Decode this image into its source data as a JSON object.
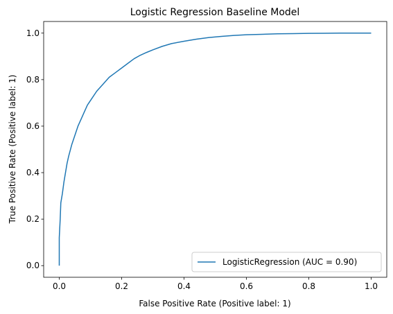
{
  "chart_data": {
    "type": "line",
    "title": "Logistic Regression Baseline Model",
    "xlabel": "False Positive Rate (Positive label: 1)",
    "ylabel": "True Positive Rate (Positive label: 1)",
    "xlim": [
      -0.05,
      1.05
    ],
    "ylim": [
      -0.05,
      1.05
    ],
    "xticks": [
      0.0,
      0.2,
      0.4,
      0.6,
      0.8,
      1.0
    ],
    "yticks": [
      0.0,
      0.2,
      0.4,
      0.6,
      0.8,
      1.0
    ],
    "xtick_labels": [
      "0.0",
      "0.2",
      "0.4",
      "0.6",
      "0.8",
      "1.0"
    ],
    "ytick_labels": [
      "0.0",
      "0.2",
      "0.4",
      "0.6",
      "0.8",
      "1.0"
    ],
    "grid": false,
    "legend_position": "bottom-right",
    "series": [
      {
        "name": "LogisticRegression (AUC = 0.90)",
        "color": "#1f77b4",
        "x": [
          0.0,
          0.0,
          0.003,
          0.005,
          0.01,
          0.015,
          0.02,
          0.025,
          0.03,
          0.04,
          0.05,
          0.06,
          0.07,
          0.08,
          0.09,
          0.1,
          0.12,
          0.14,
          0.16,
          0.18,
          0.2,
          0.22,
          0.24,
          0.26,
          0.28,
          0.3,
          0.33,
          0.36,
          0.4,
          0.44,
          0.48,
          0.52,
          0.56,
          0.6,
          0.65,
          0.7,
          0.75,
          0.8,
          0.85,
          0.9,
          0.95,
          1.0
        ],
        "y": [
          0.0,
          0.12,
          0.2,
          0.27,
          0.31,
          0.36,
          0.4,
          0.44,
          0.47,
          0.52,
          0.56,
          0.6,
          0.63,
          0.66,
          0.69,
          0.71,
          0.75,
          0.78,
          0.81,
          0.83,
          0.85,
          0.87,
          0.89,
          0.905,
          0.917,
          0.928,
          0.943,
          0.955,
          0.965,
          0.974,
          0.981,
          0.986,
          0.99,
          0.993,
          0.995,
          0.997,
          0.998,
          0.999,
          0.9995,
          1.0,
          1.0,
          1.0
        ]
      }
    ]
  }
}
